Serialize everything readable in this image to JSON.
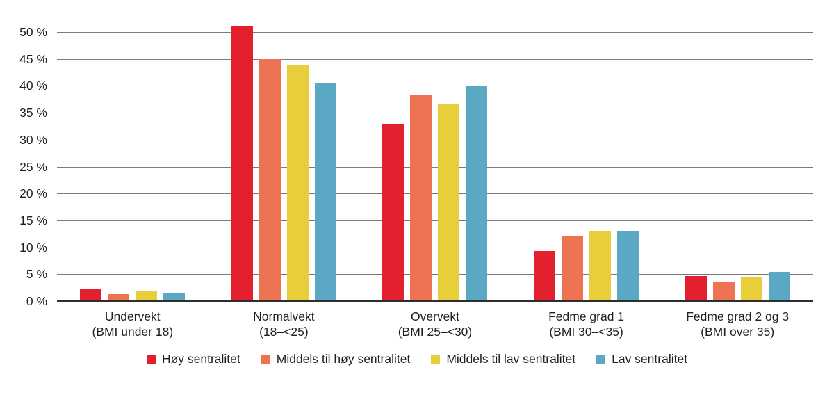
{
  "chart_data": {
    "type": "bar",
    "title": "",
    "categories": [
      [
        "Undervekt",
        "(BMI under 18)"
      ],
      [
        "Normalvekt",
        "(18–<25)"
      ],
      [
        "Overvekt",
        "(BMI 25–<30)"
      ],
      [
        "Fedme grad 1",
        "(BMI 30–<35)"
      ],
      [
        "Fedme grad 2 og 3",
        "(BMI over 35)"
      ]
    ],
    "series": [
      {
        "name": "Høy sentralitet",
        "color": "#e3212e",
        "values": [
          2.2,
          51.0,
          32.9,
          9.3,
          4.6
        ]
      },
      {
        "name": "Middels til høy sentralitet",
        "color": "#ee7352",
        "values": [
          1.3,
          45.0,
          38.3,
          12.2,
          3.5
        ]
      },
      {
        "name": "Middels til lav sentralitet",
        "color": "#e9ce3c",
        "values": [
          1.8,
          43.9,
          36.7,
          13.1,
          4.5
        ]
      },
      {
        "name": "Lav sentralitet",
        "color": "#5ba8c4",
        "values": [
          1.5,
          40.4,
          39.9,
          13.1,
          5.4
        ]
      }
    ],
    "y_axis": {
      "min": 0,
      "max": 50,
      "step": 5,
      "tick_labels": [
        "0 %",
        "5 %",
        "10 %",
        "15 %",
        "20 %",
        "25 %",
        "30 %",
        "35 %",
        "40 %",
        "45 %",
        "50 %"
      ]
    },
    "ylim": [
      0,
      55
    ],
    "grid": true,
    "legend_position": "bottom",
    "colors": {
      "background": "#ffffff",
      "gridline": "#7b7b7b",
      "axis_line": "#2e2e2e",
      "text": "#1f1f1f"
    }
  }
}
